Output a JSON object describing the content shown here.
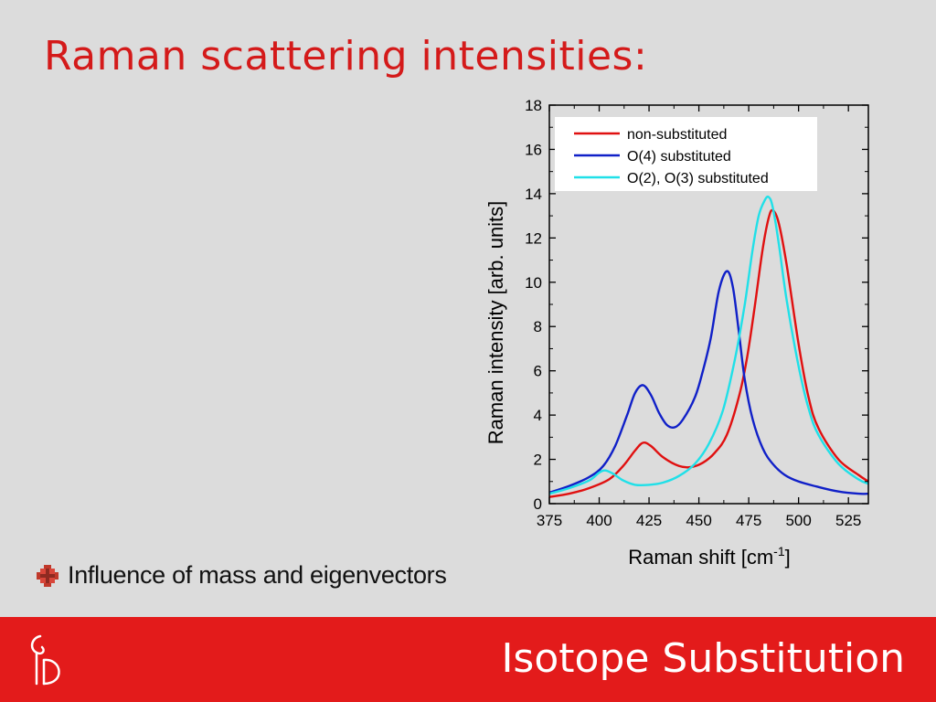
{
  "slide": {
    "title": "Raman scattering intensities:",
    "bullet_text": "Influence of mass and eigenvectors",
    "footer_title": "Isotope Substitution",
    "accent_color": "#e31b1b",
    "title_color": "#d41a1a",
    "bullet_icon": "red-cross-bullet-icon",
    "logo_icon": "department-logo-icon"
  },
  "chart_data": {
    "type": "line",
    "xlabel": "Raman shift [cm",
    "xlabel_sup": "-1",
    "xlabel_end": "]",
    "ylabel": "Raman intensity [arb. units]",
    "xlim": [
      375,
      535
    ],
    "ylim": [
      0,
      18
    ],
    "xticks": [
      375,
      400,
      425,
      450,
      475,
      500,
      525
    ],
    "yticks": [
      0,
      2,
      4,
      6,
      8,
      10,
      12,
      14,
      16,
      18
    ],
    "legend_position": "top-right",
    "grid": false,
    "series": [
      {
        "name": "non-substituted",
        "color": "#e01010",
        "x": [
          375,
          385,
          395,
          405,
          412,
          418,
          422,
          426,
          432,
          440,
          446,
          452,
          458,
          464,
          470,
          474,
          478,
          482,
          485,
          487,
          490,
          494,
          500,
          505,
          510,
          520,
          530,
          535
        ],
        "y": [
          0.3,
          0.45,
          0.7,
          1.1,
          1.7,
          2.4,
          2.75,
          2.6,
          2.1,
          1.7,
          1.65,
          1.85,
          2.3,
          3.1,
          4.8,
          6.5,
          8.9,
          11.5,
          12.9,
          13.25,
          12.7,
          10.8,
          7.2,
          4.8,
          3.4,
          2.0,
          1.3,
          1.0
        ]
      },
      {
        "name": "O(4) substituted",
        "color": "#1020c8",
        "x": [
          375,
          385,
          395,
          402,
          408,
          414,
          418,
          422,
          426,
          430,
          434,
          438,
          442,
          448,
          452,
          456,
          460,
          464,
          467,
          470,
          473,
          477,
          482,
          487,
          493,
          500,
          510,
          520,
          530,
          535
        ],
        "y": [
          0.5,
          0.8,
          1.2,
          1.7,
          2.6,
          4.0,
          5.0,
          5.35,
          4.9,
          4.1,
          3.55,
          3.45,
          3.8,
          4.8,
          6.0,
          7.5,
          9.6,
          10.5,
          9.8,
          7.8,
          5.6,
          3.8,
          2.5,
          1.8,
          1.3,
          1.0,
          0.75,
          0.55,
          0.45,
          0.45
        ]
      },
      {
        "name": "O(2), O(3) substituted",
        "color": "#20e0e8",
        "x": [
          375,
          385,
          395,
          400,
          403,
          407,
          412,
          418,
          425,
          432,
          440,
          448,
          455,
          462,
          468,
          473,
          477,
          480,
          483,
          485,
          487,
          490,
          494,
          500,
          505,
          510,
          520,
          530,
          535
        ],
        "y": [
          0.45,
          0.7,
          1.05,
          1.4,
          1.5,
          1.35,
          1.05,
          0.85,
          0.85,
          0.95,
          1.25,
          1.8,
          2.7,
          4.2,
          6.5,
          9.0,
          11.5,
          13.0,
          13.7,
          13.85,
          13.4,
          11.8,
          9.2,
          6.2,
          4.3,
          3.1,
          1.8,
          1.1,
          0.9
        ]
      }
    ]
  }
}
